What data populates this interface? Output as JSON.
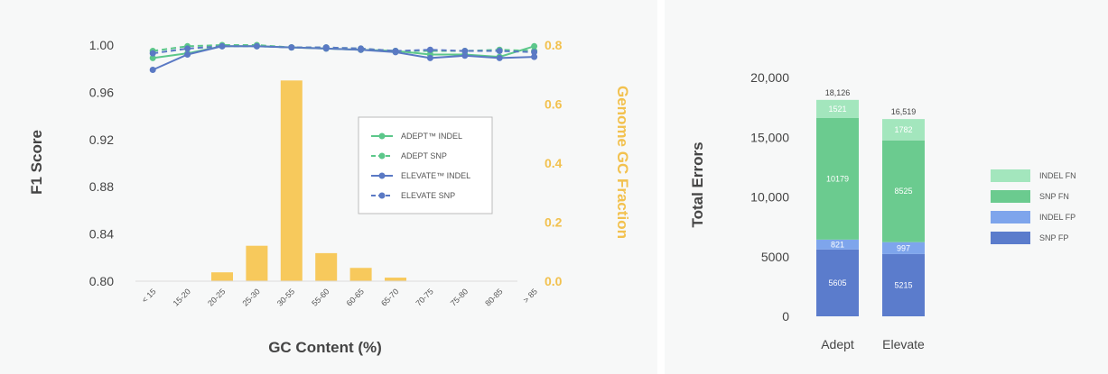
{
  "colors": {
    "adept_green": "#5cc78a",
    "elevate_blue": "#5a79c4",
    "gc_bar": "#f7c95c",
    "gc_axis": "#f2c14e",
    "indel_fn": "#a3e6bd",
    "snp_fn": "#6bcb8f",
    "indel_fp": "#7ea5ec",
    "snp_fp": "#5b7ccc"
  },
  "chart_data": [
    {
      "type": "line",
      "title": "",
      "xlabel": "GC Content (%)",
      "ylabel": "F1 Score",
      "y2label": "Genome GC Fraction",
      "ylim": [
        0.8,
        1.0
      ],
      "y2lim": [
        0.0,
        0.8
      ],
      "yticks": [
        "1.00",
        "0.96",
        "0.92",
        "0.88",
        "0.84",
        "0.80"
      ],
      "y2ticks": [
        "0.8",
        "0.6",
        "0.4",
        "0.2",
        "0.0"
      ],
      "categories": [
        "< 15",
        "15-20",
        "20-25",
        "25-30",
        "30-55",
        "55-60",
        "60-65",
        "65-70",
        "70-75",
        "75-80",
        "80-85",
        "> 85"
      ],
      "gc_fraction": [
        0.0,
        0.0,
        0.03,
        0.12,
        0.68,
        0.095,
        0.045,
        0.012,
        0.0,
        0.0,
        0.0,
        0.0
      ],
      "legend_position": "center-right",
      "series": [
        {
          "name": "ADEPT™ INDEL",
          "style": "solid",
          "color_key": "adept_green",
          "values": [
            0.989,
            0.993,
            0.999,
            0.999,
            0.998,
            0.997,
            0.996,
            0.995,
            0.992,
            0.992,
            0.99,
            0.999
          ]
        },
        {
          "name": "ADEPT SNP",
          "style": "dashed",
          "color_key": "adept_green",
          "values": [
            0.995,
            0.999,
            1.0,
            1.0,
            0.998,
            0.998,
            0.997,
            0.995,
            0.995,
            0.995,
            0.996,
            0.995
          ]
        },
        {
          "name": "ELEVATE™ INDEL",
          "style": "solid",
          "color_key": "elevate_blue",
          "values": [
            0.979,
            0.992,
            0.999,
            0.999,
            0.998,
            0.997,
            0.996,
            0.994,
            0.989,
            0.991,
            0.989,
            0.99
          ]
        },
        {
          "name": "ELEVATE SNP",
          "style": "dashed",
          "color_key": "elevate_blue",
          "values": [
            0.993,
            0.997,
            0.999,
            0.999,
            0.998,
            0.998,
            0.997,
            0.995,
            0.996,
            0.995,
            0.995,
            0.994
          ]
        }
      ]
    },
    {
      "type": "bar",
      "stacked": true,
      "title": "",
      "xlabel": "",
      "ylabel": "Total Errors",
      "ylim": [
        0,
        20000
      ],
      "yticks": [
        "20,000",
        "15,000",
        "10,000",
        "5000",
        "0"
      ],
      "categories": [
        "Adept",
        "Elevate"
      ],
      "totals": [
        "18,126",
        "16,519"
      ],
      "legend_position": "right",
      "series": [
        {
          "name": "SNP FP",
          "color_key": "snp_fp",
          "values": [
            5605,
            5215
          ]
        },
        {
          "name": "INDEL FP",
          "color_key": "indel_fp",
          "values": [
            821,
            997
          ]
        },
        {
          "name": "SNP FN",
          "color_key": "snp_fn",
          "values": [
            10179,
            8525
          ]
        },
        {
          "name": "INDEL FN",
          "color_key": "indel_fn",
          "values": [
            1521,
            1782
          ]
        }
      ]
    }
  ]
}
